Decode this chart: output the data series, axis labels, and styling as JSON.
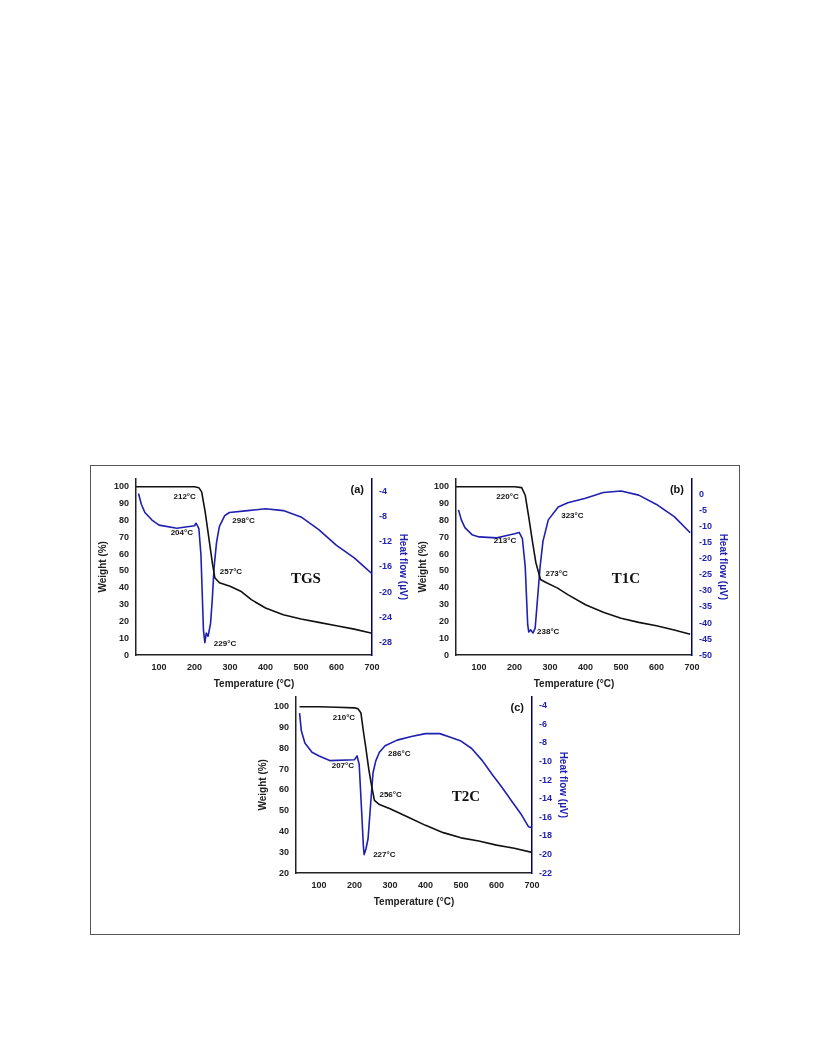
{
  "chart_data": [
    {
      "type": "line",
      "title": "TGS",
      "xlabel": "Temperature (°C)",
      "ylabel": "Weight (%)",
      "y2label": "Heat flow (µV)",
      "xlim": [
        35,
        700
      ],
      "xticks": [
        100,
        200,
        300,
        400,
        500,
        600,
        700
      ],
      "ylim": [
        0,
        105
      ],
      "yticks": [
        0,
        10,
        20,
        30,
        40,
        50,
        60,
        70,
        80,
        90,
        100
      ],
      "y2lim": [
        -30,
        -2
      ],
      "y2ticks": [
        -28,
        -24,
        -20,
        -16,
        -12,
        -8,
        -4
      ],
      "grid": false,
      "legend": false,
      "marker": "none",
      "line_style": "solid",
      "series": [
        {
          "color": "#111111",
          "x": [
            35,
            100,
            200,
            212,
            220,
            230,
            240,
            250,
            257,
            270,
            300,
            330,
            360,
            400,
            450,
            500,
            550,
            600,
            650,
            700
          ],
          "values": [
            100,
            100,
            100,
            99.5,
            97,
            85,
            70,
            55,
            46,
            43,
            41,
            38,
            33,
            28,
            24,
            21.5,
            19.5,
            17.5,
            15.5,
            13
          ]
        },
        {
          "color": "#1f1fb0",
          "axis": "y2",
          "x": [
            42,
            50,
            60,
            80,
            100,
            150,
            200,
            204,
            212,
            218,
            225,
            229,
            233,
            238,
            245,
            250,
            255,
            262,
            270,
            285,
            298,
            350,
            400,
            450,
            500,
            550,
            600,
            650,
            680,
            700
          ],
          "values": [
            -4.4,
            -6.1,
            -7.4,
            -8.6,
            -9.4,
            -9.9,
            -9.5,
            -9.1,
            -9.9,
            -14.1,
            -26,
            -28,
            -26.5,
            -27,
            -25,
            -21.1,
            -16.1,
            -12.1,
            -9.6,
            -7.9,
            -7.4,
            -7.1,
            -6.8,
            -7.1,
            -8.1,
            -10.1,
            -12.6,
            -14.6,
            -16.1,
            -17.1
          ]
        }
      ],
      "annotations": [
        "(a)",
        {
          "text": "212°C",
          "x": 212,
          "y": 99.5
        },
        {
          "text": "204°C",
          "x": 204,
          "y": 78
        },
        {
          "text": "298°C",
          "x": 298,
          "y": 85
        },
        {
          "text": "229°C",
          "x": 229,
          "y": 7
        },
        {
          "text": "257°C",
          "x": 257,
          "y": 46
        }
      ]
    },
    {
      "type": "line",
      "title": "T1C",
      "xlabel": "Temperature (°C)",
      "ylabel": "Weight (%)",
      "y2label": "Heat flow (µV)",
      "xlim": [
        35,
        700
      ],
      "xticks": [
        100,
        200,
        300,
        400,
        500,
        600,
        700
      ],
      "ylim": [
        0,
        105
      ],
      "yticks": [
        0,
        10,
        20,
        30,
        40,
        50,
        60,
        70,
        80,
        90,
        100
      ],
      "y2lim": [
        -50,
        5
      ],
      "y2ticks": [
        -50,
        -45,
        -40,
        -35,
        -30,
        -25,
        -20,
        -15,
        -10,
        -5,
        0
      ],
      "grid": false,
      "legend": false,
      "marker": "none",
      "line_style": "solid",
      "series": [
        {
          "color": "#111111",
          "x": [
            35,
            100,
            200,
            220,
            230,
            240,
            250,
            260,
            273,
            290,
            320,
            350,
            400,
            450,
            500,
            550,
            600,
            650,
            695
          ],
          "values": [
            100,
            100,
            100,
            99.5,
            95,
            82,
            68,
            55,
            45,
            43,
            40,
            36,
            30,
            25.5,
            22,
            19.5,
            17.5,
            15,
            12.5
          ]
        },
        {
          "color": "#1f1fb0",
          "axis": "y2",
          "x": [
            42,
            50,
            60,
            80,
            100,
            150,
            200,
            213,
            222,
            230,
            237,
            240,
            245,
            252,
            258,
            265,
            272,
            280,
            295,
            323,
            350,
            400,
            450,
            500,
            550,
            600,
            650,
            695
          ],
          "values": [
            -4.8,
            -7.9,
            -10.3,
            -12.5,
            -13.2,
            -13.5,
            -12.2,
            -11.8,
            -13.7,
            -22.4,
            -40.5,
            -42.8,
            -42.1,
            -43.1,
            -41.6,
            -32,
            -22.4,
            -14.6,
            -7.9,
            -3.9,
            -2.6,
            -1.2,
            0.6,
            1.1,
            -0.2,
            -3.1,
            -6.9,
            -11.9
          ]
        }
      ],
      "annotations": [
        "(b)",
        {
          "text": "220°C",
          "x": 220,
          "y": 99.5
        },
        {
          "text": "213°C",
          "x": 213,
          "y": 73
        },
        {
          "text": "323°C",
          "x": 323,
          "y": 88
        },
        {
          "text": "238°C",
          "x": 238,
          "y": 14
        },
        {
          "text": "273°C",
          "x": 273,
          "y": 45
        }
      ]
    },
    {
      "type": "line",
      "title": "T2C",
      "xlabel": "Temperature (°C)",
      "ylabel": "Weight (%)",
      "y2label": "Heat flow (µV)",
      "xlim": [
        35,
        700
      ],
      "xticks": [
        100,
        200,
        300,
        400,
        500,
        600,
        700
      ],
      "ylim": [
        20,
        105
      ],
      "yticks": [
        20,
        30,
        40,
        50,
        60,
        70,
        80,
        90,
        100
      ],
      "y2lim": [
        -22,
        -3
      ],
      "y2ticks": [
        -22,
        -20,
        -18,
        -16,
        -14,
        -12,
        -10,
        -8,
        -6,
        -4
      ],
      "grid": false,
      "legend": false,
      "marker": "none",
      "line_style": "solid",
      "series": [
        {
          "color": "#111111",
          "x": [
            45,
            100,
            150,
            200,
            210,
            218,
            225,
            232,
            240,
            248,
            256,
            270,
            300,
            350,
            400,
            450,
            500,
            550,
            600,
            650,
            700
          ],
          "values": [
            100,
            100,
            99.8,
            99.5,
            99,
            97,
            88,
            80,
            70,
            62,
            55,
            53,
            51,
            47,
            43,
            39.5,
            37,
            35.5,
            33.5,
            32,
            30
          ]
        },
        {
          "color": "#1f1fb0",
          "axis": "y2",
          "x": [
            45,
            50,
            60,
            80,
            100,
            130,
            200,
            207,
            213,
            220,
            225,
            227,
            232,
            238,
            245,
            252,
            260,
            270,
            286,
            320,
            360,
            400,
            440,
            470,
            500,
            530,
            560,
            590,
            610,
            640,
            670,
            690,
            700
          ],
          "values": [
            -4.8,
            -6.7,
            -8,
            -9,
            -9.4,
            -9.9,
            -9.8,
            -9.4,
            -10.3,
            -15.4,
            -19.2,
            -20,
            -19.4,
            -18.3,
            -14.7,
            -11.2,
            -9.9,
            -9,
            -8.3,
            -7.7,
            -7.3,
            -7,
            -7,
            -7.4,
            -7.8,
            -8.6,
            -9.9,
            -11.5,
            -12.5,
            -14.1,
            -15.7,
            -17,
            -17.1
          ]
        }
      ],
      "annotations": [
        "(c)",
        {
          "text": "210°C",
          "x": 210,
          "y": 99
        },
        {
          "text": "207°C",
          "x": 207,
          "y": 76
        },
        {
          "text": "286°C",
          "x": 286,
          "y": 81.5
        },
        {
          "text": "227°C",
          "x": 227,
          "y": 29
        },
        {
          "text": "256°C",
          "x": 256,
          "y": 55
        }
      ]
    }
  ]
}
